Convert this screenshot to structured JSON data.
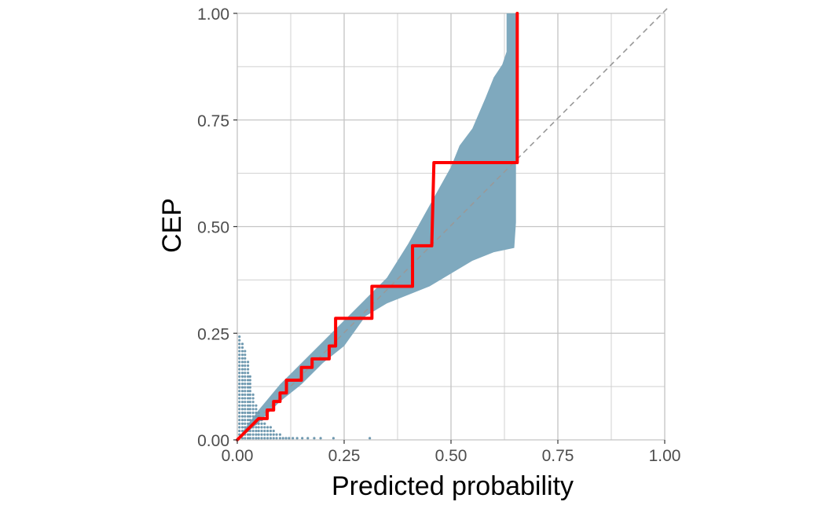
{
  "chart_data": {
    "type": "line",
    "title": "",
    "xlabel": "Predicted probability",
    "ylabel": "CEP",
    "xlim": [
      0,
      1
    ],
    "ylim": [
      0,
      1
    ],
    "grid": true,
    "legend": "none",
    "x_ticks": [
      "0.00",
      "0.25",
      "0.50",
      "0.75",
      "1.00"
    ],
    "y_ticks": [
      "0.00",
      "0.25",
      "0.50",
      "0.75",
      "1.00"
    ],
    "colors": {
      "band": "#7fa9be",
      "cep_line": "#ff0000",
      "diagonal": "#999999",
      "dots": "#6f99b0",
      "grid": "#d0d0d0"
    },
    "reference_line": {
      "name": "diagonal",
      "points": [
        [
          0,
          0
        ],
        [
          1,
          1
        ]
      ]
    },
    "band": {
      "upper": [
        [
          0,
          0
        ],
        [
          0.02,
          0.03
        ],
        [
          0.05,
          0.07
        ],
        [
          0.1,
          0.13
        ],
        [
          0.15,
          0.18
        ],
        [
          0.2,
          0.23
        ],
        [
          0.25,
          0.28
        ],
        [
          0.3,
          0.33
        ],
        [
          0.35,
          0.38
        ],
        [
          0.4,
          0.46
        ],
        [
          0.45,
          0.55
        ],
        [
          0.5,
          0.64
        ],
        [
          0.52,
          0.69
        ],
        [
          0.55,
          0.73
        ],
        [
          0.58,
          0.8
        ],
        [
          0.6,
          0.85
        ],
        [
          0.62,
          0.88
        ],
        [
          0.63,
          0.91
        ],
        [
          0.63,
          1.0
        ],
        [
          0.652,
          1.0
        ]
      ],
      "lower": [
        [
          0.652,
          0.51
        ],
        [
          0.648,
          0.45
        ],
        [
          0.6,
          0.44
        ],
        [
          0.55,
          0.42
        ],
        [
          0.5,
          0.39
        ],
        [
          0.45,
          0.36
        ],
        [
          0.4,
          0.34
        ],
        [
          0.35,
          0.32
        ],
        [
          0.3,
          0.29
        ],
        [
          0.25,
          0.22
        ],
        [
          0.2,
          0.18
        ],
        [
          0.15,
          0.13
        ],
        [
          0.1,
          0.09
        ],
        [
          0.05,
          0.04
        ],
        [
          0.02,
          0.015
        ],
        [
          0,
          0
        ]
      ]
    },
    "cep_step": [
      [
        0,
        0
      ],
      [
        0.02,
        0.02
      ],
      [
        0.04,
        0.04
      ],
      [
        0.05,
        0.05
      ],
      [
        0.07,
        0.05
      ],
      [
        0.07,
        0.07
      ],
      [
        0.085,
        0.07
      ],
      [
        0.085,
        0.09
      ],
      [
        0.1,
        0.09
      ],
      [
        0.1,
        0.11
      ],
      [
        0.115,
        0.11
      ],
      [
        0.115,
        0.14
      ],
      [
        0.15,
        0.14
      ],
      [
        0.15,
        0.17
      ],
      [
        0.175,
        0.17
      ],
      [
        0.175,
        0.19
      ],
      [
        0.215,
        0.19
      ],
      [
        0.215,
        0.22
      ],
      [
        0.23,
        0.22
      ],
      [
        0.23,
        0.285
      ],
      [
        0.315,
        0.285
      ],
      [
        0.315,
        0.36
      ],
      [
        0.41,
        0.36
      ],
      [
        0.41,
        0.455
      ],
      [
        0.455,
        0.455
      ],
      [
        0.46,
        0.65
      ],
      [
        0.655,
        0.65
      ],
      [
        0.655,
        1.0
      ]
    ],
    "dot_columns": [
      {
        "x": 0.005,
        "top": 0.245
      },
      {
        "x": 0.012,
        "top": 0.23
      },
      {
        "x": 0.018,
        "top": 0.21
      },
      {
        "x": 0.025,
        "top": 0.19
      },
      {
        "x": 0.03,
        "top": 0.15
      },
      {
        "x": 0.037,
        "top": 0.11
      },
      {
        "x": 0.044,
        "top": 0.085
      },
      {
        "x": 0.05,
        "top": 0.065
      },
      {
        "x": 0.057,
        "top": 0.05
      },
      {
        "x": 0.064,
        "top": 0.04
      },
      {
        "x": 0.071,
        "top": 0.035
      },
      {
        "x": 0.078,
        "top": 0.03
      },
      {
        "x": 0.085,
        "top": 0.025
      },
      {
        "x": 0.092,
        "top": 0.02
      },
      {
        "x": 0.1,
        "top": 0.015
      },
      {
        "x": 0.107,
        "top": 0.012
      },
      {
        "x": 0.114,
        "top": 0.01
      },
      {
        "x": 0.121,
        "top": 0.008
      },
      {
        "x": 0.13,
        "top": 0.006
      },
      {
        "x": 0.14,
        "top": 0.005
      },
      {
        "x": 0.152,
        "top": 0.005
      },
      {
        "x": 0.165,
        "top": 0.004
      },
      {
        "x": 0.18,
        "top": 0.004
      },
      {
        "x": 0.195,
        "top": 0.004
      },
      {
        "x": 0.225,
        "top": 0.004
      },
      {
        "x": 0.31,
        "top": 0.004
      }
    ]
  }
}
